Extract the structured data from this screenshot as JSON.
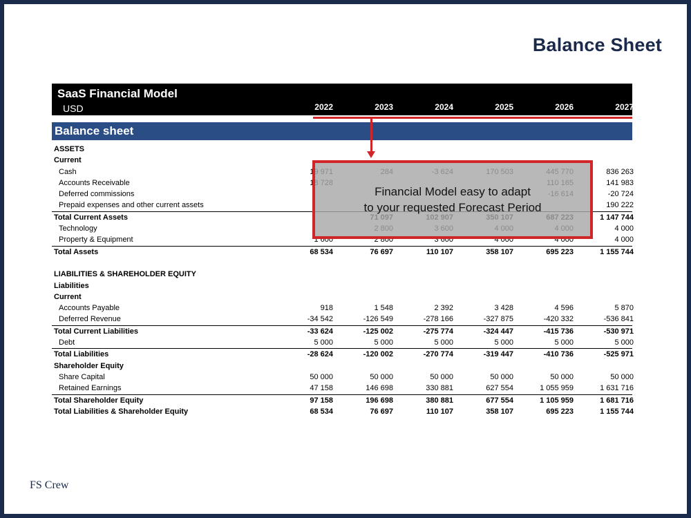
{
  "slide": {
    "title": "Balance Sheet",
    "brand": "FS Crew"
  },
  "model": {
    "title": "SaaS Financial Model",
    "currency": "USD",
    "years": [
      "2022",
      "2023",
      "2024",
      "2025",
      "2026",
      "2027"
    ]
  },
  "section_title": "Balance sheet",
  "callout": {
    "line1": "Financial Model easy to adapt",
    "line2": "to your requested Forecast Period"
  },
  "rows": [
    {
      "label": "ASSETS",
      "style": "bold heading",
      "values": [
        "",
        "",
        "",
        "",
        "",
        ""
      ]
    },
    {
      "label": "Current",
      "style": "bold heading",
      "values": [
        "",
        "",
        "",
        "",
        "",
        ""
      ]
    },
    {
      "label": "Cash",
      "style": "item",
      "values": [
        "19 971",
        "284",
        "-3 624",
        "170 503",
        "445 770",
        "836 263"
      ]
    },
    {
      "label": "Accounts Receivable",
      "style": "item",
      "values": [
        "18 728",
        "",
        "",
        "",
        "110 165",
        "141 983"
      ]
    },
    {
      "label": "Deferred commissions",
      "style": "item",
      "values": [
        "",
        "",
        "",
        "",
        "-16 614",
        "-20 724"
      ]
    },
    {
      "label": "Prepaid expenses and other current assets",
      "style": "item",
      "values": [
        "",
        "",
        "",
        "",
        "",
        "190 222"
      ]
    },
    {
      "label": "Total Current Assets",
      "style": "bold total",
      "values": [
        "",
        "71 097",
        "102 907",
        "350 107",
        "687 223",
        "1 147 744"
      ]
    },
    {
      "label": "Technology",
      "style": "item",
      "values": [
        "",
        "2 800",
        "3 600",
        "4 000",
        "4 000",
        "4 000"
      ]
    },
    {
      "label": "Property & Equipment",
      "style": "item",
      "values": [
        "1 600",
        "2 800",
        "3 600",
        "4 000",
        "4 000",
        "4 000"
      ]
    },
    {
      "label": "Total Assets",
      "style": "bold total",
      "values": [
        "68 534",
        "76 697",
        "110 107",
        "358 107",
        "695 223",
        "1 155 744"
      ]
    },
    {
      "label": "",
      "style": "spacer",
      "values": [
        "",
        "",
        "",
        "",
        "",
        ""
      ]
    },
    {
      "label": "LIABILITIES & SHAREHOLDER EQUITY",
      "style": "bold heading",
      "values": [
        "",
        "",
        "",
        "",
        "",
        ""
      ]
    },
    {
      "label": "Liabilities",
      "style": "bold heading",
      "values": [
        "",
        "",
        "",
        "",
        "",
        ""
      ]
    },
    {
      "label": "Current",
      "style": "bold heading",
      "values": [
        "",
        "",
        "",
        "",
        "",
        ""
      ]
    },
    {
      "label": "Accounts Payable",
      "style": "item",
      "values": [
        "918",
        "1 548",
        "2 392",
        "3 428",
        "4 596",
        "5 870"
      ]
    },
    {
      "label": "Deferred Revenue",
      "style": "item",
      "values": [
        "-34 542",
        "-126 549",
        "-278 166",
        "-327 875",
        "-420 332",
        "-536 841"
      ]
    },
    {
      "label": "Total Current Liabilities",
      "style": "bold total",
      "values": [
        "-33 624",
        "-125 002",
        "-275 774",
        "-324 447",
        "-415 736",
        "-530 971"
      ]
    },
    {
      "label": "Debt",
      "style": "item",
      "values": [
        "5 000",
        "5 000",
        "5 000",
        "5 000",
        "5 000",
        "5 000"
      ]
    },
    {
      "label": "Total Liabilities",
      "style": "bold total",
      "values": [
        "-28 624",
        "-120 002",
        "-270 774",
        "-319 447",
        "-410 736",
        "-525 971"
      ]
    },
    {
      "label": "Shareholder Equity",
      "style": "bold heading",
      "values": [
        "",
        "",
        "",
        "",
        "",
        ""
      ]
    },
    {
      "label": "Share Capital",
      "style": "item",
      "values": [
        "50 000",
        "50 000",
        "50 000",
        "50 000",
        "50 000",
        "50 000"
      ]
    },
    {
      "label": "Retained Earnings",
      "style": "item",
      "values": [
        "47 158",
        "146 698",
        "330 881",
        "627 554",
        "1 055 959",
        "1 631 716"
      ]
    },
    {
      "label": "Total Shareholder Equity",
      "style": "bold total",
      "values": [
        "97 158",
        "196 698",
        "380 881",
        "677 554",
        "1 105 959",
        "1 681 716"
      ]
    },
    {
      "label": "Total Liabilities & Shareholder Equity",
      "style": "bold",
      "values": [
        "68 534",
        "76 697",
        "110 107",
        "358 107",
        "695 223",
        "1 155 744"
      ]
    }
  ]
}
